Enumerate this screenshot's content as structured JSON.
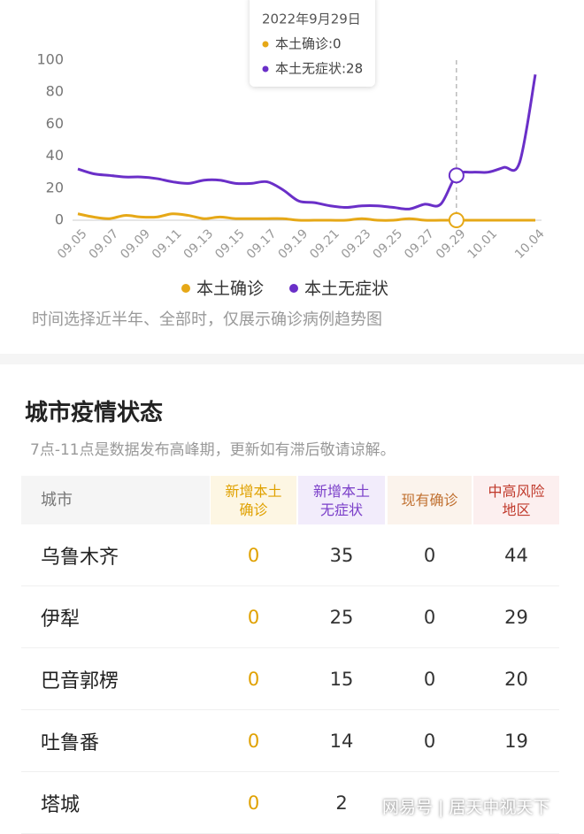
{
  "chart_data": {
    "type": "line",
    "categories": [
      "09.05",
      null,
      "09.07",
      null,
      "09.09",
      null,
      "09.11",
      null,
      "09.13",
      null,
      "09.15",
      null,
      "09.17",
      null,
      "09.19",
      null,
      "09.21",
      null,
      "09.23",
      null,
      "09.25",
      null,
      "09.27",
      null,
      "09.29",
      null,
      "10.01",
      null,
      null,
      "10.04"
    ],
    "series": [
      {
        "name": "本土确诊",
        "color": "#e6a817",
        "values": [
          4,
          2,
          1,
          3,
          2,
          2,
          4,
          3,
          1,
          2,
          1,
          1,
          1,
          1,
          0,
          0,
          0,
          0,
          1,
          0,
          0,
          1,
          0,
          0,
          0,
          0,
          0,
          0,
          0,
          0
        ]
      },
      {
        "name": "本土无症状",
        "color": "#6a2fc8",
        "values": [
          32,
          29,
          28,
          27,
          27,
          26,
          24,
          23,
          25,
          25,
          23,
          23,
          24,
          19,
          12,
          11,
          9,
          8,
          9,
          9,
          8,
          7,
          10,
          10,
          28,
          30,
          30,
          33,
          36,
          91
        ]
      }
    ],
    "ylim": [
      0,
      100
    ],
    "yticks": [
      0,
      20,
      40,
      60,
      80,
      100
    ],
    "grid": false,
    "hover_index": 24,
    "tooltip": {
      "title": "2022年9月29日",
      "lines": [
        "本土确诊:0",
        "本土无症状:28"
      ]
    },
    "note": "时间选择近半年、全部时，仅展示确诊病例趋势图"
  },
  "section": {
    "title": "城市疫情状态",
    "subtitle": "7点-11点是数据发布高峰期，更新如有滞后敬请谅解。"
  },
  "table": {
    "header": [
      "城市",
      "新增本土确诊",
      "新增本土无症状",
      "现有确诊",
      "中高风险地区"
    ],
    "rows": [
      [
        "乌鲁木齐",
        0,
        35,
        0,
        44
      ],
      [
        "伊犁",
        0,
        25,
        0,
        29
      ],
      [
        "巴音郭楞",
        0,
        15,
        0,
        20
      ],
      [
        "吐鲁番",
        0,
        14,
        0,
        19
      ],
      [
        "塔城",
        0,
        2
      ]
    ]
  },
  "watermark": "网易号 | 居天中视天下"
}
